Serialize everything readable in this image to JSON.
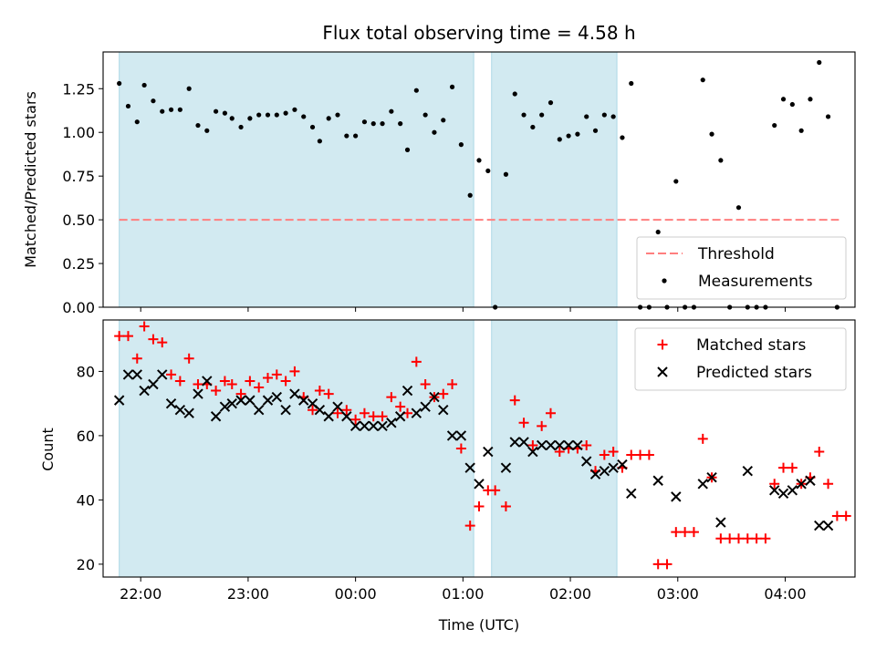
{
  "figure": {
    "title": "Flux total observing time = 4.58 h",
    "xlabel": "Time (UTC)"
  },
  "colors": {
    "band": "#add8e6",
    "threshold": "#ff7f7f",
    "measurement": "#000000",
    "matched": "#ff0000",
    "predicted": "#000000"
  },
  "chart_data": [
    {
      "type": "scatter",
      "ylabel": "Matched/Predicted stars",
      "xlim": [
        "21:39",
        "04:39"
      ],
      "ylim": [
        0,
        1.46
      ],
      "yticks": [
        0.0,
        0.25,
        0.5,
        0.75,
        1.0,
        1.25
      ],
      "ytick_labels": [
        "0.00",
        "0.25",
        "0.50",
        "0.75",
        "1.00",
        "1.25"
      ],
      "xtick_labels": [
        "22:00",
        "23:00",
        "00:00",
        "01:00",
        "02:00",
        "03:00",
        "04:00"
      ],
      "shaded_intervals": [
        [
          "21:48",
          "01:06"
        ],
        [
          "01:16",
          "02:26"
        ]
      ],
      "threshold": {
        "name": "Threshold",
        "value": 0.5,
        "x_range": [
          "21:48",
          "04:30"
        ],
        "style": "dashed"
      },
      "legend": {
        "location": "lower right",
        "entries": [
          "Threshold",
          "Measurements"
        ]
      },
      "series": [
        {
          "name": "Measurements",
          "marker": "dot",
          "points": [
            [
              "21:48",
              1.28
            ],
            [
              "21:53",
              1.15
            ],
            [
              "21:58",
              1.06
            ],
            [
              "22:02",
              1.27
            ],
            [
              "22:07",
              1.18
            ],
            [
              "22:12",
              1.12
            ],
            [
              "22:17",
              1.13
            ],
            [
              "22:22",
              1.13
            ],
            [
              "22:27",
              1.25
            ],
            [
              "22:32",
              1.04
            ],
            [
              "22:37",
              1.01
            ],
            [
              "22:42",
              1.12
            ],
            [
              "22:47",
              1.11
            ],
            [
              "22:51",
              1.08
            ],
            [
              "22:56",
              1.03
            ],
            [
              "23:01",
              1.08
            ],
            [
              "23:06",
              1.1
            ],
            [
              "23:11",
              1.1
            ],
            [
              "23:16",
              1.1
            ],
            [
              "23:21",
              1.11
            ],
            [
              "23:26",
              1.13
            ],
            [
              "23:31",
              1.09
            ],
            [
              "23:36",
              1.03
            ],
            [
              "23:40",
              0.95
            ],
            [
              "23:45",
              1.08
            ],
            [
              "23:50",
              1.1
            ],
            [
              "23:55",
              0.98
            ],
            [
              "00:00",
              0.98
            ],
            [
              "00:05",
              1.06
            ],
            [
              "00:10",
              1.05
            ],
            [
              "00:15",
              1.05
            ],
            [
              "00:20",
              1.12
            ],
            [
              "00:25",
              1.05
            ],
            [
              "00:29",
              0.9
            ],
            [
              "00:34",
              1.24
            ],
            [
              "00:39",
              1.1
            ],
            [
              "00:44",
              1.0
            ],
            [
              "00:49",
              1.07
            ],
            [
              "00:54",
              1.26
            ],
            [
              "00:59",
              0.93
            ],
            [
              "01:04",
              0.64
            ],
            [
              "01:09",
              0.84
            ],
            [
              "01:14",
              0.78
            ],
            [
              "01:18",
              0.0
            ],
            [
              "01:24",
              0.76
            ],
            [
              "01:29",
              1.22
            ],
            [
              "01:34",
              1.1
            ],
            [
              "01:39",
              1.03
            ],
            [
              "01:44",
              1.1
            ],
            [
              "01:49",
              1.17
            ],
            [
              "01:54",
              0.96
            ],
            [
              "01:59",
              0.98
            ],
            [
              "02:04",
              0.99
            ],
            [
              "02:09",
              1.09
            ],
            [
              "02:14",
              1.01
            ],
            [
              "02:19",
              1.1
            ],
            [
              "02:24",
              1.09
            ],
            [
              "02:29",
              0.97
            ],
            [
              "02:34",
              1.28
            ],
            [
              "02:39",
              0.0
            ],
            [
              "02:44",
              0.0
            ],
            [
              "02:49",
              0.43
            ],
            [
              "02:54",
              0.0
            ],
            [
              "02:59",
              0.72
            ],
            [
              "03:04",
              0.0
            ],
            [
              "03:09",
              0.0
            ],
            [
              "03:14",
              1.3
            ],
            [
              "03:19",
              0.99
            ],
            [
              "03:24",
              0.84
            ],
            [
              "03:29",
              0.0
            ],
            [
              "03:34",
              0.57
            ],
            [
              "03:39",
              0.0
            ],
            [
              "03:44",
              0.0
            ],
            [
              "03:49",
              0.0
            ],
            [
              "03:54",
              1.04
            ],
            [
              "03:59",
              1.19
            ],
            [
              "04:04",
              1.16
            ],
            [
              "04:09",
              1.01
            ],
            [
              "04:14",
              1.19
            ],
            [
              "04:19",
              1.4
            ],
            [
              "04:24",
              1.09
            ],
            [
              "04:29",
              0.0
            ]
          ]
        }
      ]
    },
    {
      "type": "scatter",
      "ylabel": "Count",
      "xlim": [
        "21:39",
        "04:39"
      ],
      "ylim": [
        16,
        96
      ],
      "yticks": [
        20,
        40,
        60,
        80
      ],
      "ytick_labels": [
        "20",
        "40",
        "60",
        "80"
      ],
      "xtick_labels": [
        "22:00",
        "23:00",
        "00:00",
        "01:00",
        "02:00",
        "03:00",
        "04:00"
      ],
      "shaded_intervals": [
        [
          "21:48",
          "01:06"
        ],
        [
          "01:16",
          "02:26"
        ]
      ],
      "legend": {
        "location": "upper right",
        "entries": [
          "Matched stars",
          "Predicted stars"
        ]
      },
      "series": [
        {
          "name": "Matched stars",
          "marker": "plus",
          "points": [
            [
              "21:48",
              91
            ],
            [
              "21:53",
              91
            ],
            [
              "21:58",
              84
            ],
            [
              "22:02",
              94
            ],
            [
              "22:07",
              90
            ],
            [
              "22:12",
              89
            ],
            [
              "22:17",
              79
            ],
            [
              "22:22",
              77
            ],
            [
              "22:27",
              84
            ],
            [
              "22:32",
              76
            ],
            [
              "22:37",
              76
            ],
            [
              "22:42",
              74
            ],
            [
              "22:47",
              77
            ],
            [
              "22:51",
              76
            ],
            [
              "22:56",
              73
            ],
            [
              "23:01",
              77
            ],
            [
              "23:06",
              75
            ],
            [
              "23:11",
              78
            ],
            [
              "23:16",
              79
            ],
            [
              "23:21",
              77
            ],
            [
              "23:26",
              80
            ],
            [
              "23:31",
              72
            ],
            [
              "23:36",
              68
            ],
            [
              "23:40",
              74
            ],
            [
              "23:45",
              73
            ],
            [
              "23:50",
              67
            ],
            [
              "23:55",
              68
            ],
            [
              "00:00",
              65
            ],
            [
              "00:05",
              67
            ],
            [
              "00:10",
              66
            ],
            [
              "00:15",
              66
            ],
            [
              "00:20",
              72
            ],
            [
              "00:25",
              69
            ],
            [
              "00:29",
              67
            ],
            [
              "00:34",
              83
            ],
            [
              "00:39",
              76
            ],
            [
              "00:44",
              72
            ],
            [
              "00:49",
              73
            ],
            [
              "00:54",
              76
            ],
            [
              "00:59",
              56
            ],
            [
              "01:04",
              32
            ],
            [
              "01:09",
              38
            ],
            [
              "01:14",
              43
            ],
            [
              "01:18",
              43
            ],
            [
              "01:24",
              38
            ],
            [
              "01:29",
              71
            ],
            [
              "01:34",
              64
            ],
            [
              "01:39",
              57
            ],
            [
              "01:44",
              63
            ],
            [
              "01:49",
              67
            ],
            [
              "01:54",
              55
            ],
            [
              "01:59",
              56
            ],
            [
              "02:04",
              56
            ],
            [
              "02:09",
              57
            ],
            [
              "02:14",
              49
            ],
            [
              "02:19",
              54
            ],
            [
              "02:24",
              55
            ],
            [
              "02:29",
              50
            ],
            [
              "02:34",
              54
            ],
            [
              "02:39",
              54
            ],
            [
              "02:44",
              54
            ],
            [
              "02:49",
              20
            ],
            [
              "02:54",
              20
            ],
            [
              "02:59",
              30
            ],
            [
              "03:04",
              30
            ],
            [
              "03:09",
              30
            ],
            [
              "03:14",
              59
            ],
            [
              "03:19",
              47
            ],
            [
              "03:24",
              28
            ],
            [
              "03:29",
              28
            ],
            [
              "03:34",
              28
            ],
            [
              "03:39",
              28
            ],
            [
              "03:44",
              28
            ],
            [
              "03:49",
              28
            ],
            [
              "03:54",
              45
            ],
            [
              "03:59",
              50
            ],
            [
              "04:04",
              50
            ],
            [
              "04:09",
              45
            ],
            [
              "04:14",
              47
            ],
            [
              "04:19",
              55
            ],
            [
              "04:24",
              45
            ],
            [
              "04:29",
              35
            ],
            [
              "04:34",
              35
            ]
          ]
        },
        {
          "name": "Predicted stars",
          "marker": "x",
          "points": [
            [
              "21:48",
              71
            ],
            [
              "21:53",
              79
            ],
            [
              "21:58",
              79
            ],
            [
              "22:02",
              74
            ],
            [
              "22:07",
              76
            ],
            [
              "22:12",
              79
            ],
            [
              "22:17",
              70
            ],
            [
              "22:22",
              68
            ],
            [
              "22:27",
              67
            ],
            [
              "22:32",
              73
            ],
            [
              "22:37",
              77
            ],
            [
              "22:42",
              66
            ],
            [
              "22:47",
              69
            ],
            [
              "22:51",
              70
            ],
            [
              "22:56",
              71
            ],
            [
              "23:01",
              71
            ],
            [
              "23:06",
              68
            ],
            [
              "23:11",
              71
            ],
            [
              "23:16",
              72
            ],
            [
              "23:21",
              68
            ],
            [
              "23:26",
              73
            ],
            [
              "23:31",
              71
            ],
            [
              "23:36",
              70
            ],
            [
              "23:40",
              68
            ],
            [
              "23:45",
              66
            ],
            [
              "23:50",
              69
            ],
            [
              "23:55",
              66
            ],
            [
              "00:00",
              63
            ],
            [
              "00:05",
              63
            ],
            [
              "00:10",
              63
            ],
            [
              "00:15",
              63
            ],
            [
              "00:20",
              64
            ],
            [
              "00:25",
              66
            ],
            [
              "00:29",
              74
            ],
            [
              "00:34",
              67
            ],
            [
              "00:39",
              69
            ],
            [
              "00:44",
              72
            ],
            [
              "00:49",
              68
            ],
            [
              "00:54",
              60
            ],
            [
              "00:59",
              60
            ],
            [
              "01:04",
              50
            ],
            [
              "01:09",
              45
            ],
            [
              "01:14",
              55
            ],
            [
              "01:24",
              50
            ],
            [
              "01:29",
              58
            ],
            [
              "01:34",
              58
            ],
            [
              "01:39",
              55
            ],
            [
              "01:44",
              57
            ],
            [
              "01:49",
              57
            ],
            [
              "01:54",
              57
            ],
            [
              "01:59",
              57
            ],
            [
              "02:04",
              57
            ],
            [
              "02:09",
              52
            ],
            [
              "02:14",
              48
            ],
            [
              "02:19",
              49
            ],
            [
              "02:24",
              50
            ],
            [
              "02:29",
              51
            ],
            [
              "02:34",
              42
            ],
            [
              "02:49",
              46
            ],
            [
              "02:59",
              41
            ],
            [
              "03:14",
              45
            ],
            [
              "03:19",
              47
            ],
            [
              "03:24",
              33
            ],
            [
              "03:39",
              49
            ],
            [
              "03:54",
              43
            ],
            [
              "03:59",
              42
            ],
            [
              "04:04",
              43
            ],
            [
              "04:09",
              45
            ],
            [
              "04:14",
              46
            ],
            [
              "04:19",
              32
            ],
            [
              "04:24",
              32
            ]
          ]
        }
      ]
    }
  ]
}
